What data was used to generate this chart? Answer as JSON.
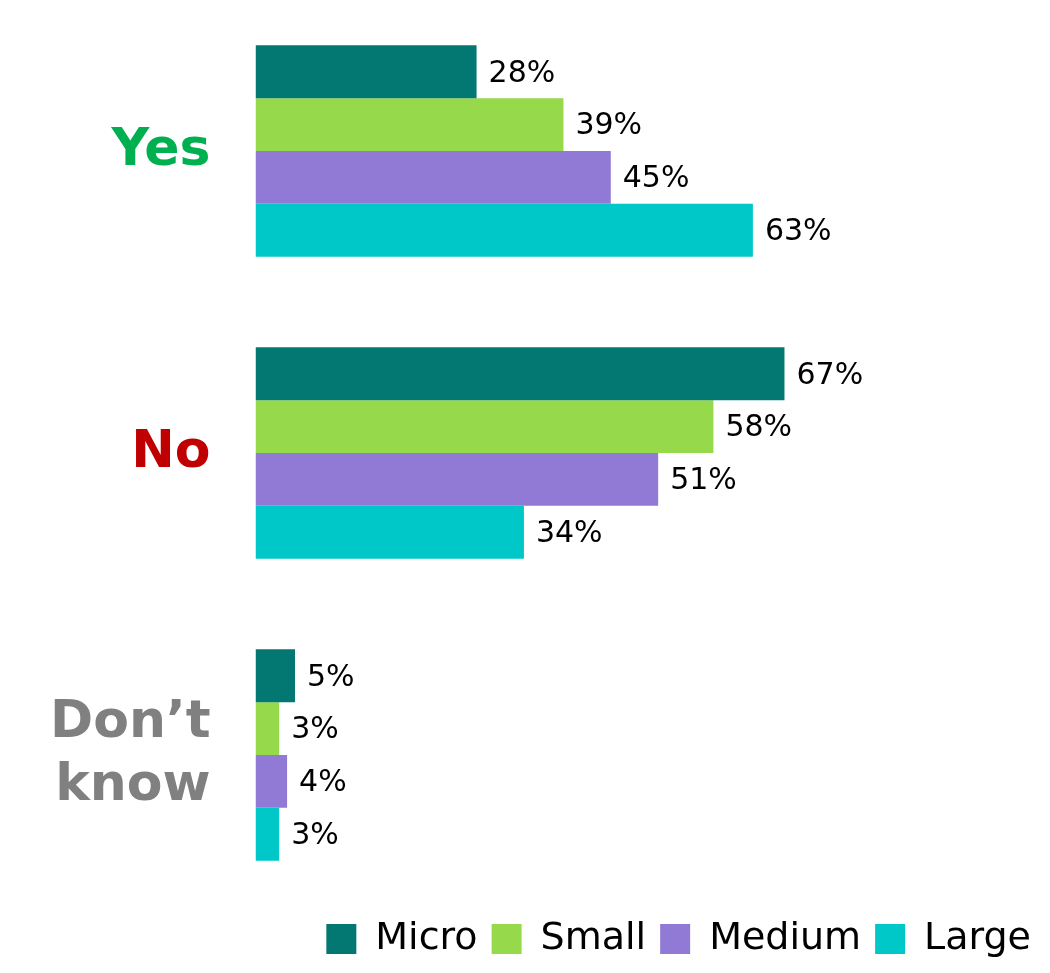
{
  "chart_data": {
    "type": "bar",
    "orientation": "horizontal",
    "categories": [
      "Yes",
      "No",
      "Don’t know"
    ],
    "series": [
      {
        "name": "Micro",
        "color": "#037872",
        "values": [
          28,
          67,
          5
        ],
        "value_labels": [
          "28%",
          "67%",
          "5%"
        ]
      },
      {
        "name": "Small",
        "color": "#96d94a",
        "values": [
          39,
          58,
          3
        ],
        "value_labels": [
          "39%",
          "58%",
          "3%"
        ]
      },
      {
        "name": "Medium",
        "color": "#9179d6",
        "values": [
          45,
          51,
          4
        ],
        "value_labels": [
          "45%",
          "51%",
          "4%"
        ]
      },
      {
        "name": "Large",
        "color": "#00c8c8",
        "values": [
          63,
          34,
          3
        ],
        "value_labels": [
          "63%",
          "34%",
          "3%"
        ]
      }
    ],
    "legend": "bottom right"
  }
}
